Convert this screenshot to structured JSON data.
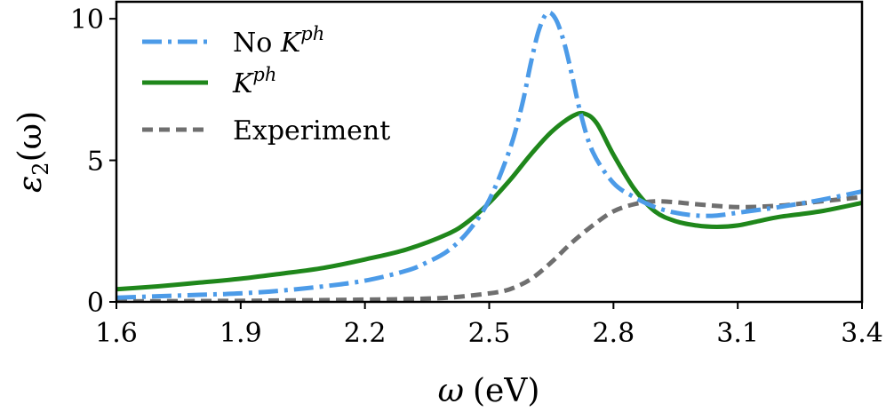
{
  "chart_data": {
    "type": "line",
    "title": "",
    "xlabel": {
      "symbol": "ω",
      "unit": "(eV)"
    },
    "ylabel": {
      "symbol": "ε",
      "subscript": "2",
      "arg": "(ω)"
    },
    "xlim": [
      1.6,
      3.4
    ],
    "ylim": [
      0,
      10.6
    ],
    "xticks": [
      1.6,
      1.9,
      2.2,
      2.5,
      2.8,
      3.1,
      3.4
    ],
    "xtick_labels": [
      "1.6",
      "1.9",
      "2.2",
      "2.5",
      "2.8",
      "3.1",
      "3.4"
    ],
    "yticks": [
      0,
      5,
      10
    ],
    "ytick_labels": [
      "0",
      "5",
      "10"
    ],
    "grid": false,
    "legend_position": "top-left",
    "series": [
      {
        "name": "No K^ph",
        "label_text": "No ",
        "label_symbol": "K",
        "label_sup": "ph",
        "color": "#4c9be8",
        "style": "dash-dot",
        "x": [
          1.6,
          1.7,
          1.8,
          1.9,
          2.0,
          2.1,
          2.2,
          2.3,
          2.35,
          2.4,
          2.45,
          2.5,
          2.55,
          2.58,
          2.6,
          2.62,
          2.64,
          2.66,
          2.68,
          2.7,
          2.72,
          2.75,
          2.8,
          2.85,
          2.9,
          2.95,
          3.0,
          3.05,
          3.1,
          3.15,
          3.2,
          3.3,
          3.4
        ],
        "y": [
          0.15,
          0.2,
          0.25,
          0.3,
          0.4,
          0.55,
          0.75,
          1.1,
          1.4,
          1.8,
          2.5,
          3.6,
          5.4,
          7.0,
          8.4,
          9.6,
          10.2,
          10.0,
          9.2,
          8.0,
          6.7,
          5.3,
          4.2,
          3.7,
          3.35,
          3.15,
          3.05,
          3.05,
          3.15,
          3.25,
          3.35,
          3.6,
          3.9
        ]
      },
      {
        "name": "K^ph",
        "label_text": "",
        "label_symbol": "K",
        "label_sup": "ph",
        "color": "#1f871b",
        "style": "solid",
        "x": [
          1.6,
          1.7,
          1.8,
          1.9,
          2.0,
          2.1,
          2.2,
          2.3,
          2.4,
          2.45,
          2.5,
          2.55,
          2.6,
          2.65,
          2.7,
          2.73,
          2.76,
          2.8,
          2.85,
          2.9,
          2.95,
          3.0,
          3.05,
          3.1,
          3.15,
          3.2,
          3.3,
          3.4
        ],
        "y": [
          0.45,
          0.55,
          0.68,
          0.82,
          1.0,
          1.2,
          1.5,
          1.85,
          2.4,
          2.85,
          3.5,
          4.3,
          5.2,
          6.0,
          6.55,
          6.65,
          6.3,
          5.2,
          4.0,
          3.2,
          2.85,
          2.7,
          2.65,
          2.7,
          2.85,
          3.0,
          3.2,
          3.5
        ]
      },
      {
        "name": "Experiment",
        "label_text": "Experiment",
        "label_symbol": "",
        "label_sup": "",
        "color": "#6f6f6f",
        "style": "dashed",
        "x": [
          1.6,
          1.8,
          2.0,
          2.2,
          2.3,
          2.4,
          2.5,
          2.55,
          2.6,
          2.65,
          2.7,
          2.75,
          2.8,
          2.85,
          2.9,
          2.95,
          3.0,
          3.1,
          3.2,
          3.3,
          3.4
        ],
        "y": [
          0.02,
          0.03,
          0.05,
          0.08,
          0.1,
          0.15,
          0.3,
          0.45,
          0.8,
          1.4,
          2.1,
          2.7,
          3.2,
          3.45,
          3.55,
          3.52,
          3.45,
          3.35,
          3.4,
          3.55,
          3.7
        ]
      }
    ]
  }
}
